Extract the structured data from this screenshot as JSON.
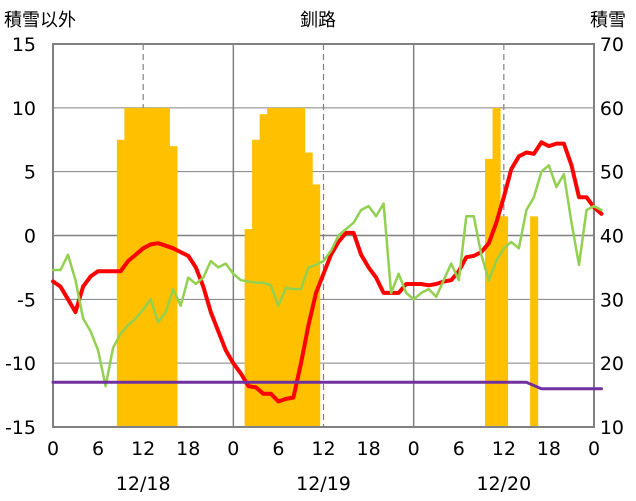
{
  "chart_data": {
    "type": "combo",
    "title": "釧路",
    "ylabel_left": "積雪以外",
    "ylabel_right": "積雪",
    "ylim_left": [
      -15,
      15
    ],
    "ylim_right": [
      10,
      70
    ],
    "yticks_left": [
      "15",
      "10",
      "5",
      "0",
      "-5",
      "-10",
      "-15"
    ],
    "yticks_right": [
      "70",
      "60",
      "50",
      "40",
      "30",
      "20",
      "10"
    ],
    "x_hour_ticks": [
      "0",
      "6",
      "12",
      "18",
      "0",
      "6",
      "12",
      "18",
      "0",
      "6",
      "12",
      "18",
      "0"
    ],
    "date_labels": [
      "12/18",
      "12/19",
      "12/20"
    ],
    "colors": {
      "snow_bar": "#FFC000",
      "red_series": "#FF0000",
      "green_series": "#92D050",
      "purple_series": "#7030A0",
      "axes": "#808080",
      "grid": "#808080"
    },
    "bars_snow_depth": [
      {
        "hour": 9,
        "value": 55
      },
      {
        "hour": 10,
        "value": 60
      },
      {
        "hour": 11,
        "value": 60
      },
      {
        "hour": 12,
        "value": 60
      },
      {
        "hour": 13,
        "value": 60
      },
      {
        "hour": 14,
        "value": 60
      },
      {
        "hour": 15,
        "value": 60
      },
      {
        "hour": 16,
        "value": 54
      },
      {
        "hour": 26,
        "value": 41
      },
      {
        "hour": 27,
        "value": 55
      },
      {
        "hour": 28,
        "value": 59
      },
      {
        "hour": 29,
        "value": 60
      },
      {
        "hour": 30,
        "value": 60
      },
      {
        "hour": 31,
        "value": 60
      },
      {
        "hour": 32,
        "value": 60
      },
      {
        "hour": 33,
        "value": 60
      },
      {
        "hour": 34,
        "value": 53
      },
      {
        "hour": 35,
        "value": 48
      },
      {
        "hour": 58,
        "value": 52
      },
      {
        "hour": 59,
        "value": 60
      },
      {
        "hour": 60,
        "value": 43
      },
      {
        "hour": 64,
        "value": 43
      }
    ],
    "series": [
      {
        "color_key": "red_series",
        "points": [
          [
            0,
            -3.6
          ],
          [
            1,
            -4.0
          ],
          [
            2,
            -5.0
          ],
          [
            3,
            -6.0
          ],
          [
            4,
            -4.0
          ],
          [
            5,
            -3.2
          ],
          [
            6,
            -2.8
          ],
          [
            7,
            -2.8
          ],
          [
            8,
            -2.8
          ],
          [
            9,
            -2.8
          ],
          [
            10,
            -2.0
          ],
          [
            11,
            -1.5
          ],
          [
            12,
            -1.0
          ],
          [
            13,
            -0.7
          ],
          [
            14,
            -0.6
          ],
          [
            15,
            -0.8
          ],
          [
            16,
            -1.0
          ],
          [
            17,
            -1.3
          ],
          [
            18,
            -1.6
          ],
          [
            19,
            -2.5
          ],
          [
            20,
            -4.0
          ],
          [
            21,
            -6.0
          ],
          [
            22,
            -7.5
          ],
          [
            23,
            -9.0
          ],
          [
            24,
            -10.0
          ],
          [
            25,
            -10.8
          ],
          [
            26,
            -11.8
          ],
          [
            27,
            -11.9
          ],
          [
            28,
            -12.4
          ],
          [
            29,
            -12.4
          ],
          [
            30,
            -13.0
          ],
          [
            31,
            -12.8
          ],
          [
            32,
            -12.7
          ],
          [
            33,
            -10.0
          ],
          [
            34,
            -7.0
          ],
          [
            35,
            -4.5
          ],
          [
            36,
            -3.0
          ],
          [
            37,
            -1.5
          ],
          [
            38,
            -0.5
          ],
          [
            39,
            0.2
          ],
          [
            40,
            0.2
          ],
          [
            41,
            -1.5
          ],
          [
            42,
            -2.5
          ],
          [
            43,
            -3.3
          ],
          [
            44,
            -4.5
          ],
          [
            45,
            -4.5
          ],
          [
            46,
            -4.5
          ],
          [
            47,
            -3.8
          ],
          [
            48,
            -3.8
          ],
          [
            49,
            -3.8
          ],
          [
            50,
            -3.9
          ],
          [
            51,
            -3.8
          ],
          [
            52,
            -3.6
          ],
          [
            53,
            -3.5
          ],
          [
            54,
            -2.8
          ],
          [
            55,
            -1.7
          ],
          [
            56,
            -1.6
          ],
          [
            57,
            -1.3
          ],
          [
            58,
            -0.6
          ],
          [
            59,
            1.0
          ],
          [
            60,
            3.0
          ],
          [
            61,
            5.2
          ],
          [
            62,
            6.2
          ],
          [
            63,
            6.5
          ],
          [
            64,
            6.4
          ],
          [
            65,
            7.3
          ],
          [
            66,
            7.0
          ],
          [
            67,
            7.2
          ],
          [
            68,
            7.2
          ],
          [
            69,
            5.5
          ],
          [
            70,
            3.0
          ],
          [
            71,
            3.0
          ],
          [
            72,
            2.2
          ],
          [
            73,
            1.7
          ]
        ]
      },
      {
        "color_key": "green_series",
        "points": [
          [
            0,
            -2.7
          ],
          [
            1,
            -2.7
          ],
          [
            2,
            -1.5
          ],
          [
            3,
            -3.5
          ],
          [
            4,
            -6.5
          ],
          [
            5,
            -7.5
          ],
          [
            6,
            -9.0
          ],
          [
            7,
            -11.8
          ],
          [
            8,
            -8.8
          ],
          [
            9,
            -7.7
          ],
          [
            10,
            -7.0
          ],
          [
            11,
            -6.5
          ],
          [
            12,
            -5.8
          ],
          [
            13,
            -5.0
          ],
          [
            14,
            -6.8
          ],
          [
            15,
            -6.0
          ],
          [
            16,
            -4.2
          ],
          [
            17,
            -5.5
          ],
          [
            18,
            -3.3
          ],
          [
            19,
            -3.8
          ],
          [
            20,
            -3.3
          ],
          [
            21,
            -2.0
          ],
          [
            22,
            -2.5
          ],
          [
            23,
            -2.2
          ],
          [
            24,
            -3.0
          ],
          [
            25,
            -3.5
          ],
          [
            26,
            -3.6
          ],
          [
            27,
            -3.7
          ],
          [
            28,
            -3.7
          ],
          [
            29,
            -3.9
          ],
          [
            30,
            -5.5
          ],
          [
            31,
            -4.1
          ],
          [
            32,
            -4.2
          ],
          [
            33,
            -4.2
          ],
          [
            34,
            -2.5
          ],
          [
            35,
            -2.3
          ],
          [
            36,
            -2.0
          ],
          [
            37,
            -1.2
          ],
          [
            38,
            0.0
          ],
          [
            39,
            0.5
          ],
          [
            40,
            1.0
          ],
          [
            41,
            2.0
          ],
          [
            42,
            2.3
          ],
          [
            43,
            1.5
          ],
          [
            44,
            2.5
          ],
          [
            45,
            -4.5
          ],
          [
            46,
            -3.0
          ],
          [
            47,
            -4.5
          ],
          [
            48,
            -5.0
          ],
          [
            49,
            -4.5
          ],
          [
            50,
            -4.2
          ],
          [
            51,
            -4.8
          ],
          [
            52,
            -3.5
          ],
          [
            53,
            -2.2
          ],
          [
            54,
            -3.5
          ],
          [
            55,
            1.5
          ],
          [
            56,
            1.5
          ],
          [
            57,
            -1.5
          ],
          [
            58,
            -3.5
          ],
          [
            59,
            -2.0
          ],
          [
            60,
            -1.0
          ],
          [
            61,
            -0.5
          ],
          [
            62,
            -1.0
          ],
          [
            63,
            2.0
          ],
          [
            64,
            3.0
          ],
          [
            65,
            5.0
          ],
          [
            66,
            5.5
          ],
          [
            67,
            3.8
          ],
          [
            68,
            4.8
          ],
          [
            69,
            1.0
          ],
          [
            70,
            -2.3
          ],
          [
            71,
            2.0
          ],
          [
            72,
            2.3
          ],
          [
            73,
            2.0
          ]
        ]
      },
      {
        "color_key": "purple_series",
        "points": [
          [
            0,
            -11.5
          ],
          [
            63,
            -11.5
          ],
          [
            65,
            -12.0
          ],
          [
            73,
            -12.0
          ]
        ]
      }
    ]
  }
}
